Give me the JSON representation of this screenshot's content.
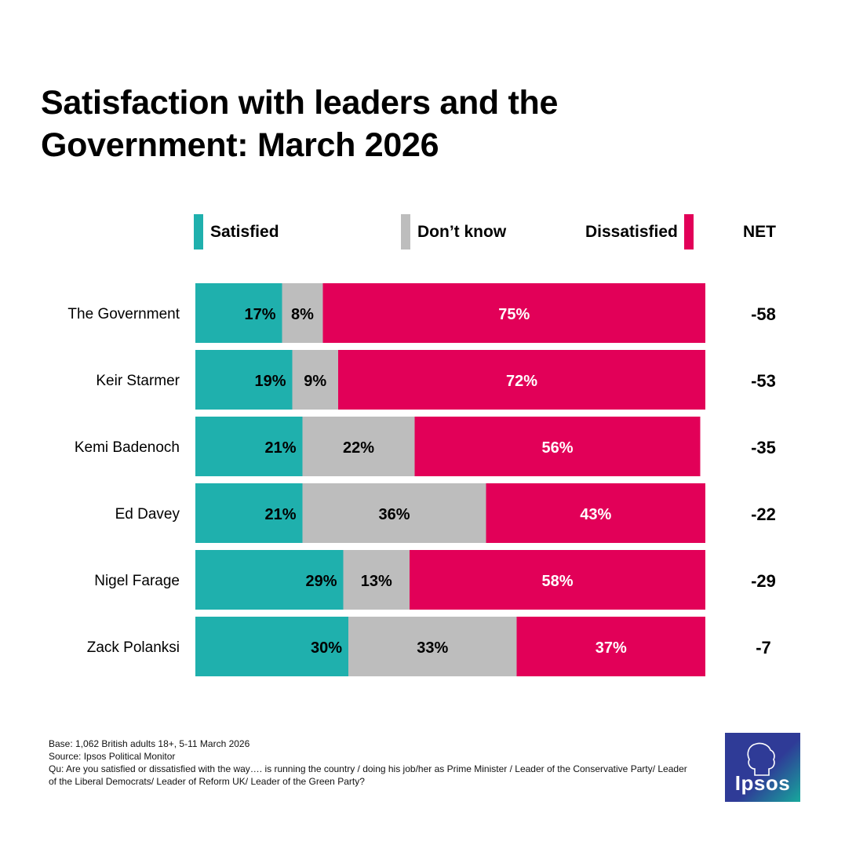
{
  "title_line1": "Satisfaction with leaders and the",
  "title_line2": "Government: March 2026",
  "legend": {
    "satisfied": "Satisfied",
    "dont_know": "Don’t know",
    "dissatisfied": "Dissatisfied",
    "net": "NET"
  },
  "colors": {
    "satisfied": "#1fb0ad",
    "dont_know": "#bdbdbd",
    "dissatisfied": "#e20058"
  },
  "chart_data": {
    "type": "bar",
    "orientation": "horizontal-stacked",
    "categories": [
      "The Government",
      "Keir Starmer",
      "Kemi Badenoch",
      "Ed Davey",
      "Nigel Farage",
      "Zack Polanksi"
    ],
    "series": [
      {
        "name": "Satisfied",
        "values": [
          17,
          19,
          21,
          21,
          29,
          30
        ]
      },
      {
        "name": "Don’t know",
        "values": [
          8,
          9,
          22,
          36,
          13,
          33
        ]
      },
      {
        "name": "Dissatisfied",
        "values": [
          75,
          72,
          56,
          43,
          58,
          37
        ]
      }
    ],
    "labels": [
      [
        "17%",
        "8%",
        "75%"
      ],
      [
        "19%",
        "9%",
        "72%"
      ],
      [
        "21%",
        "22%",
        "56%"
      ],
      [
        "21%",
        "36%",
        "43%"
      ],
      [
        "29%",
        "13%",
        "58%"
      ],
      [
        "30%",
        "33%",
        "37%"
      ]
    ],
    "net": [
      "-58",
      "-53",
      "-35",
      "-22",
      "-29",
      "-7"
    ],
    "xlim": [
      0,
      100
    ],
    "legend_position": "top"
  },
  "footnote": {
    "base": "Base: 1,062 British adults 18+, 5-11 March 2026",
    "source": "Source: Ipsos Political Monitor",
    "question": "Qu: Are you satisfied or dissatisfied with the way…. is running the country / doing his job/her as Prime Minister / Leader of the Conservative Party/ Leader of the Liberal Democrats/ Leader of Reform UK/ Leader of the Green Party?"
  },
  "logo": {
    "text": "Ipsos",
    "icon": "profile-head-icon"
  }
}
